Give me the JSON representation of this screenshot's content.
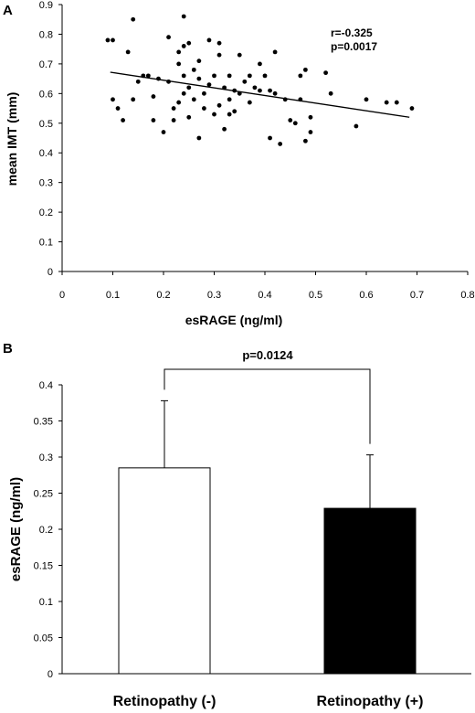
{
  "chart_data": [
    {
      "panel": "A",
      "type": "scatter",
      "xlabel": "esRAGE (ng/ml)",
      "ylabel": "mean IMT (mm)",
      "xlim": [
        0,
        0.8
      ],
      "ylim": [
        0,
        0.9
      ],
      "xticks": [
        "0",
        "0.1",
        "0.2",
        "0.3",
        "0.4",
        "0.5",
        "0.6",
        "0.7",
        "0.8"
      ],
      "yticks": [
        "0",
        "0.1",
        "0.2",
        "0.3",
        "0.4",
        "0.5",
        "0.6",
        "0.7",
        "0.8",
        "0.9"
      ],
      "annotations": [
        "r=-0.325",
        "p=0.0017"
      ],
      "grid": false,
      "trendline": {
        "x": [
          0.095,
          0.685
        ],
        "y": [
          0.672,
          0.52
        ]
      },
      "points": [
        [
          0.09,
          0.78
        ],
        [
          0.1,
          0.78
        ],
        [
          0.1,
          0.58
        ],
        [
          0.11,
          0.55
        ],
        [
          0.12,
          0.51
        ],
        [
          0.13,
          0.74
        ],
        [
          0.14,
          0.85
        ],
        [
          0.14,
          0.58
        ],
        [
          0.15,
          0.64
        ],
        [
          0.16,
          0.66
        ],
        [
          0.17,
          0.66
        ],
        [
          0.18,
          0.59
        ],
        [
          0.18,
          0.51
        ],
        [
          0.19,
          0.65
        ],
        [
          0.2,
          0.47
        ],
        [
          0.21,
          0.79
        ],
        [
          0.21,
          0.64
        ],
        [
          0.22,
          0.55
        ],
        [
          0.22,
          0.51
        ],
        [
          0.23,
          0.74
        ],
        [
          0.23,
          0.7
        ],
        [
          0.23,
          0.57
        ],
        [
          0.24,
          0.86
        ],
        [
          0.24,
          0.76
        ],
        [
          0.24,
          0.66
        ],
        [
          0.24,
          0.6
        ],
        [
          0.25,
          0.77
        ],
        [
          0.25,
          0.62
        ],
        [
          0.25,
          0.52
        ],
        [
          0.26,
          0.68
        ],
        [
          0.26,
          0.58
        ],
        [
          0.27,
          0.71
        ],
        [
          0.27,
          0.65
        ],
        [
          0.27,
          0.45
        ],
        [
          0.28,
          0.6
        ],
        [
          0.28,
          0.55
        ],
        [
          0.29,
          0.78
        ],
        [
          0.29,
          0.63
        ],
        [
          0.3,
          0.66
        ],
        [
          0.3,
          0.53
        ],
        [
          0.31,
          0.77
        ],
        [
          0.31,
          0.73
        ],
        [
          0.31,
          0.56
        ],
        [
          0.32,
          0.62
        ],
        [
          0.32,
          0.48
        ],
        [
          0.33,
          0.66
        ],
        [
          0.33,
          0.58
        ],
        [
          0.33,
          0.53
        ],
        [
          0.34,
          0.61
        ],
        [
          0.34,
          0.54
        ],
        [
          0.35,
          0.73
        ],
        [
          0.35,
          0.6
        ],
        [
          0.36,
          0.64
        ],
        [
          0.37,
          0.66
        ],
        [
          0.37,
          0.57
        ],
        [
          0.38,
          0.62
        ],
        [
          0.39,
          0.7
        ],
        [
          0.39,
          0.61
        ],
        [
          0.4,
          0.66
        ],
        [
          0.41,
          0.45
        ],
        [
          0.41,
          0.61
        ],
        [
          0.42,
          0.74
        ],
        [
          0.42,
          0.6
        ],
        [
          0.43,
          0.43
        ],
        [
          0.44,
          0.58
        ],
        [
          0.45,
          0.51
        ],
        [
          0.46,
          0.5
        ],
        [
          0.47,
          0.66
        ],
        [
          0.47,
          0.58
        ],
        [
          0.48,
          0.68
        ],
        [
          0.48,
          0.44
        ],
        [
          0.49,
          0.47
        ],
        [
          0.49,
          0.52
        ],
        [
          0.52,
          0.67
        ],
        [
          0.53,
          0.6
        ],
        [
          0.58,
          0.49
        ],
        [
          0.6,
          0.58
        ],
        [
          0.64,
          0.57
        ],
        [
          0.66,
          0.57
        ],
        [
          0.69,
          0.55
        ]
      ]
    },
    {
      "panel": "B",
      "type": "bar",
      "categories": [
        "Retinopathy (-)",
        "Retinopathy (+)"
      ],
      "values": [
        0.285,
        0.229
      ],
      "errors": [
        0.093,
        0.074
      ],
      "bar_colors": [
        "#ffffff",
        "#000000"
      ],
      "ylabel": "esRAGE (ng/ml)",
      "ylim": [
        0,
        0.4
      ],
      "yticks": [
        "0",
        "0.05",
        "0.1",
        "0.15",
        "0.2",
        "0.25",
        "0.3",
        "0.35",
        "0.4"
      ],
      "significance": "p=0.0124",
      "grid": false
    }
  ]
}
